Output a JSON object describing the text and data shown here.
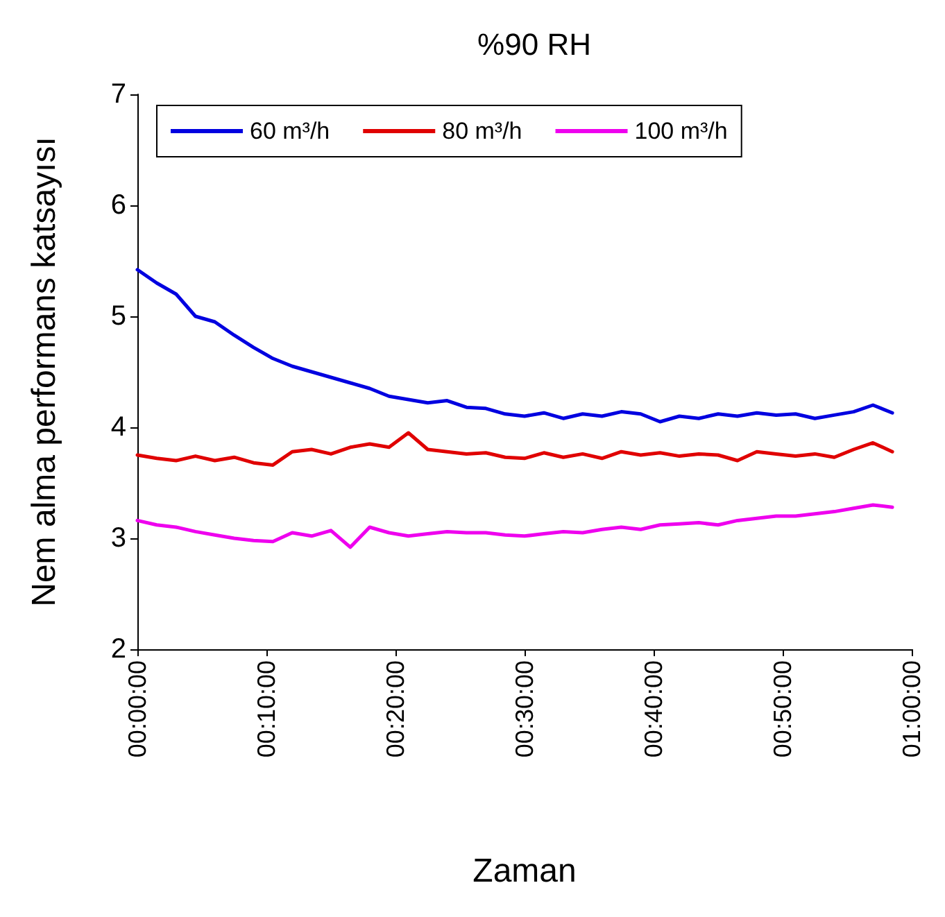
{
  "chart_data": {
    "type": "line",
    "title": "%90 RH",
    "xlabel": "Zaman",
    "ylabel": "Nem alma performans katsayısı",
    "x": [
      0,
      1.5,
      3,
      4.5,
      6,
      7.5,
      9,
      10.5,
      12,
      13.5,
      15,
      16.5,
      18,
      19.5,
      21,
      22.5,
      24,
      25.5,
      27,
      28.5,
      30,
      31.5,
      33,
      34.5,
      36,
      37.5,
      39,
      40.5,
      42,
      43.5,
      45,
      46.5,
      48,
      49.5,
      51,
      52.5,
      54,
      55.5,
      57,
      58.5
    ],
    "series": [
      {
        "name": "60 m³/h",
        "color": "#0000e0",
        "values": [
          5.42,
          5.3,
          5.2,
          5.0,
          4.95,
          4.83,
          4.72,
          4.62,
          4.55,
          4.5,
          4.45,
          4.4,
          4.35,
          4.28,
          4.25,
          4.22,
          4.24,
          4.18,
          4.17,
          4.12,
          4.1,
          4.13,
          4.08,
          4.12,
          4.1,
          4.14,
          4.12,
          4.05,
          4.1,
          4.08,
          4.12,
          4.1,
          4.13,
          4.11,
          4.12,
          4.08,
          4.11,
          4.14,
          4.2,
          4.13
        ]
      },
      {
        "name": "80 m³/h",
        "color": "#e00000",
        "values": [
          3.75,
          3.72,
          3.7,
          3.74,
          3.7,
          3.73,
          3.68,
          3.66,
          3.78,
          3.8,
          3.76,
          3.82,
          3.85,
          3.82,
          3.95,
          3.8,
          3.78,
          3.76,
          3.77,
          3.73,
          3.72,
          3.77,
          3.73,
          3.76,
          3.72,
          3.78,
          3.75,
          3.77,
          3.74,
          3.76,
          3.75,
          3.7,
          3.78,
          3.76,
          3.74,
          3.76,
          3.73,
          3.8,
          3.86,
          3.78
        ]
      },
      {
        "name": "100 m³/h",
        "color": "#ee00ee",
        "values": [
          3.16,
          3.12,
          3.1,
          3.06,
          3.03,
          3.0,
          2.98,
          2.97,
          3.05,
          3.02,
          3.07,
          2.92,
          3.1,
          3.05,
          3.02,
          3.04,
          3.06,
          3.05,
          3.05,
          3.03,
          3.02,
          3.04,
          3.06,
          3.05,
          3.08,
          3.1,
          3.08,
          3.12,
          3.13,
          3.14,
          3.12,
          3.16,
          3.18,
          3.2,
          3.2,
          3.22,
          3.24,
          3.27,
          3.3,
          3.28
        ]
      }
    ],
    "xlim": [
      0,
      60
    ],
    "xticks": [
      {
        "value": 0,
        "label": "00:00:00"
      },
      {
        "value": 10,
        "label": "00:10:00"
      },
      {
        "value": 20,
        "label": "00:20:00"
      },
      {
        "value": 30,
        "label": "00:30:00"
      },
      {
        "value": 40,
        "label": "00:40:00"
      },
      {
        "value": 50,
        "label": "00:50:00"
      },
      {
        "value": 60,
        "label": "01:00:00"
      }
    ],
    "ylim": [
      2,
      7
    ],
    "yticks": [
      2,
      3,
      4,
      5,
      6,
      7
    ],
    "legend": "top",
    "grid": false,
    "marker": "none",
    "line_style": "solid"
  }
}
